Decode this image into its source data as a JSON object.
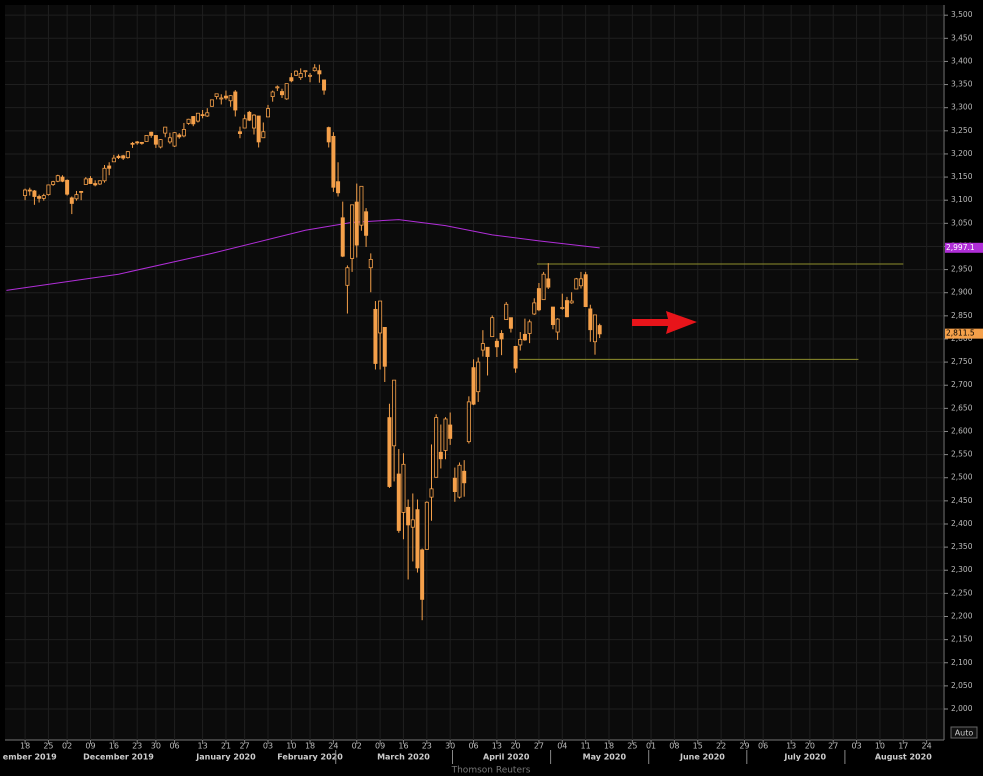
{
  "chart_data": {
    "type": "candlestick",
    "color": "#f5a04a",
    "ma_color": "#b02ed8",
    "level_color": "#8f8f2c",
    "xlim": [
      -4.3,
      196.5
    ],
    "ylim": [
      1933,
      3522
    ],
    "yticks": [
      {
        "value": 2000,
        "label": "2,000"
      },
      {
        "value": 2050,
        "label": "2,050"
      },
      {
        "value": 2100,
        "label": "2,100"
      },
      {
        "value": 2150,
        "label": "2,150"
      },
      {
        "value": 2200,
        "label": "2,200"
      },
      {
        "value": 2250,
        "label": "2,250"
      },
      {
        "value": 2300,
        "label": "2,300"
      },
      {
        "value": 2350,
        "label": "2,350"
      },
      {
        "value": 2400,
        "label": "2,400"
      },
      {
        "value": 2450,
        "label": "2,450"
      },
      {
        "value": 2500,
        "label": "2,500"
      },
      {
        "value": 2550,
        "label": "2,550"
      },
      {
        "value": 2600,
        "label": "2,600"
      },
      {
        "value": 2650,
        "label": "2,650"
      },
      {
        "value": 2700,
        "label": "2,700"
      },
      {
        "value": 2750,
        "label": "2,750"
      },
      {
        "value": 2800,
        "label": "2,800"
      },
      {
        "value": 2850,
        "label": "2,850"
      },
      {
        "value": 2900,
        "label": "2,900"
      },
      {
        "value": 2950,
        "label": "2,950"
      },
      {
        "value": 3000,
        "label": "3,000"
      },
      {
        "value": 3050,
        "label": "3,050"
      },
      {
        "value": 3100,
        "label": "3,100"
      },
      {
        "value": 3150,
        "label": "3,150"
      },
      {
        "value": 3200,
        "label": "3,200"
      },
      {
        "value": 3250,
        "label": "3,250"
      },
      {
        "value": 3300,
        "label": "3,300"
      },
      {
        "value": 3350,
        "label": "3,350"
      },
      {
        "value": 3400,
        "label": "3,400"
      },
      {
        "value": 3450,
        "label": "3,450"
      },
      {
        "value": 3500,
        "label": "3,500"
      }
    ],
    "xticks": [
      {
        "value": 0,
        "label": "18"
      },
      {
        "value": 5,
        "label": "25"
      },
      {
        "value": 9,
        "label": "02"
      },
      {
        "value": 14,
        "label": "09"
      },
      {
        "value": 19,
        "label": "16"
      },
      {
        "value": 24,
        "label": "23"
      },
      {
        "value": 28,
        "label": "30"
      },
      {
        "value": 32,
        "label": "06"
      },
      {
        "value": 38,
        "label": "13"
      },
      {
        "value": 43,
        "label": "21"
      },
      {
        "value": 47,
        "label": "27"
      },
      {
        "value": 52,
        "label": "03"
      },
      {
        "value": 57,
        "label": "10"
      },
      {
        "value": 61,
        "label": "18"
      },
      {
        "value": 66,
        "label": "24"
      },
      {
        "value": 71,
        "label": "02"
      },
      {
        "value": 76,
        "label": "09"
      },
      {
        "value": 81,
        "label": "16"
      },
      {
        "value": 86,
        "label": "23"
      },
      {
        "value": 91,
        "label": "30"
      },
      {
        "value": 96,
        "label": "06"
      },
      {
        "value": 101,
        "label": "13"
      },
      {
        "value": 105,
        "label": "20"
      },
      {
        "value": 110,
        "label": "27"
      },
      {
        "value": 115,
        "label": "04"
      },
      {
        "value": 120,
        "label": "11"
      },
      {
        "value": 125,
        "label": "18"
      },
      {
        "value": 130,
        "label": "25"
      },
      {
        "value": 134,
        "label": "01"
      },
      {
        "value": 139,
        "label": "08"
      },
      {
        "value": 144,
        "label": "15"
      },
      {
        "value": 149,
        "label": "22"
      },
      {
        "value": 154,
        "label": "29"
      },
      {
        "value": 158,
        "label": "06"
      },
      {
        "value": 164,
        "label": "13"
      },
      {
        "value": 168,
        "label": "20"
      },
      {
        "value": 173,
        "label": "27"
      },
      {
        "value": 178,
        "label": "03"
      },
      {
        "value": 183,
        "label": "10"
      },
      {
        "value": 188,
        "label": "17"
      },
      {
        "value": 193,
        "label": "24"
      }
    ],
    "months": [
      {
        "value": 1,
        "label": "ember 2019"
      },
      {
        "value": 20,
        "label": "December 2019"
      },
      {
        "value": 43,
        "label": "January 2020"
      },
      {
        "value": 61,
        "label": "February 2020"
      },
      {
        "value": 81,
        "label": "March 2020"
      },
      {
        "value": 103,
        "label": "April 2020"
      },
      {
        "value": 124,
        "label": "May 2020"
      },
      {
        "value": 145,
        "label": "June 2020"
      },
      {
        "value": 167,
        "label": "July 2020"
      },
      {
        "value": 188,
        "label": "August 2020"
      }
    ],
    "candles": [
      [
        3110,
        3125,
        3100,
        3122
      ],
      [
        3122,
        3127,
        3110,
        3120
      ],
      [
        3120,
        3122,
        3090,
        3108
      ],
      [
        3108,
        3112,
        3095,
        3104
      ],
      [
        3104,
        3114,
        3099,
        3110
      ],
      [
        3112,
        3134,
        3110,
        3133
      ],
      [
        3134,
        3142,
        3131,
        3140
      ],
      [
        3141,
        3155,
        3139,
        3153
      ],
      [
        3150,
        3154,
        3139,
        3141
      ],
      [
        3143,
        3145,
        3110,
        3113
      ],
      [
        3105,
        3108,
        3070,
        3093
      ],
      [
        3103,
        3120,
        3099,
        3112
      ],
      [
        3119,
        3120,
        3100,
        3117
      ],
      [
        3134,
        3150,
        3134,
        3146
      ],
      [
        3147,
        3152,
        3135,
        3136
      ],
      [
        3136,
        3143,
        3130,
        3133
      ],
      [
        3135,
        3143,
        3133,
        3142
      ],
      [
        3142,
        3176,
        3138,
        3169
      ],
      [
        3174,
        3182,
        3154,
        3169
      ],
      [
        3183,
        3198,
        3183,
        3191
      ],
      [
        3195,
        3199,
        3189,
        3192
      ],
      [
        3196,
        3198,
        3187,
        3191
      ],
      [
        3192,
        3206,
        3190,
        3205
      ],
      [
        3223,
        3226,
        3213,
        3221
      ],
      [
        3226,
        3228,
        3220,
        3224
      ],
      [
        3225,
        3226,
        3220,
        3223
      ],
      [
        3227,
        3240,
        3227,
        3240
      ],
      [
        3247,
        3248,
        3235,
        3240
      ],
      [
        3240,
        3241,
        3213,
        3221
      ],
      [
        3215,
        3232,
        3212,
        3231
      ],
      [
        3245,
        3258,
        3236,
        3258
      ],
      [
        3226,
        3246,
        3222,
        3235
      ],
      [
        3217,
        3247,
        3215,
        3246
      ],
      [
        3241,
        3245,
        3233,
        3237
      ],
      [
        3239,
        3267,
        3236,
        3253
      ],
      [
        3266,
        3276,
        3263,
        3275
      ],
      [
        3281,
        3282,
        3260,
        3265
      ],
      [
        3271,
        3288,
        3268,
        3288
      ],
      [
        3285,
        3295,
        3277,
        3283
      ],
      [
        3282,
        3299,
        3280,
        3289
      ],
      [
        3303,
        3317,
        3302,
        3317
      ],
      [
        3324,
        3330,
        3318,
        3330
      ],
      [
        3321,
        3329,
        3307,
        3321
      ],
      [
        3325,
        3337,
        3317,
        3321
      ],
      [
        3315,
        3327,
        3302,
        3326
      ],
      [
        3334,
        3338,
        3281,
        3295
      ],
      [
        3248,
        3259,
        3234,
        3244
      ],
      [
        3256,
        3285,
        3256,
        3276
      ],
      [
        3290,
        3293,
        3271,
        3273
      ],
      [
        3256,
        3286,
        3242,
        3284
      ],
      [
        3282,
        3282,
        3214,
        3226
      ],
      [
        3235,
        3268,
        3235,
        3248
      ],
      [
        3280,
        3306,
        3280,
        3298
      ],
      [
        3324,
        3337,
        3313,
        3334
      ],
      [
        3344,
        3348,
        3336,
        3345
      ],
      [
        3335,
        3341,
        3321,
        3328
      ],
      [
        3319,
        3352,
        3317,
        3352
      ],
      [
        3365,
        3375,
        3355,
        3358
      ],
      [
        3370,
        3381,
        3369,
        3379
      ],
      [
        3365,
        3385,
        3360,
        3374
      ],
      [
        3378,
        3380,
        3366,
        3380
      ],
      [
        3370,
        3375,
        3355,
        3370
      ],
      [
        3380,
        3394,
        3378,
        3386
      ],
      [
        3380,
        3393,
        3354,
        3373
      ],
      [
        3360,
        3360,
        3328,
        3338
      ],
      [
        3257,
        3259,
        3214,
        3226
      ],
      [
        3238,
        3247,
        3118,
        3128
      ],
      [
        3140,
        3182,
        3108,
        3116
      ],
      [
        3062,
        3097,
        2977,
        2979
      ],
      [
        2916,
        2959,
        2855,
        2954
      ],
      [
        2974,
        3090,
        2945,
        3090
      ],
      [
        3096,
        3136,
        2976,
        3003
      ],
      [
        3046,
        3130,
        3034,
        3130
      ],
      [
        3075,
        3083,
        2999,
        3024
      ],
      [
        2954,
        2985,
        2901,
        2972
      ],
      [
        2864,
        2882,
        2734,
        2747
      ],
      [
        2813,
        2882,
        2734,
        2882
      ],
      [
        2825,
        2825,
        2707,
        2741
      ],
      [
        2630,
        2660,
        2478,
        2481
      ],
      [
        2569,
        2711,
        2492,
        2711
      ],
      [
        2508,
        2562,
        2381,
        2386
      ],
      [
        2425,
        2553,
        2367,
        2529
      ],
      [
        2436,
        2453,
        2280,
        2398
      ],
      [
        2393,
        2466,
        2319,
        2409
      ],
      [
        2431,
        2453,
        2295,
        2305
      ],
      [
        2344,
        2347,
        2192,
        2237
      ],
      [
        2345,
        2449,
        2345,
        2447
      ],
      [
        2458,
        2572,
        2407,
        2476
      ],
      [
        2501,
        2637,
        2500,
        2630
      ],
      [
        2555,
        2615,
        2520,
        2541
      ],
      [
        2559,
        2631,
        2540,
        2627
      ],
      [
        2614,
        2641,
        2571,
        2585
      ],
      [
        2499,
        2522,
        2448,
        2470
      ],
      [
        2458,
        2533,
        2455,
        2527
      ],
      [
        2514,
        2538,
        2459,
        2489
      ],
      [
        2578,
        2676,
        2574,
        2664
      ],
      [
        2738,
        2756,
        2657,
        2659
      ],
      [
        2686,
        2760,
        2664,
        2750
      ],
      [
        2776,
        2819,
        2762,
        2790
      ],
      [
        2782,
        2782,
        2721,
        2762
      ],
      [
        2805,
        2851,
        2805,
        2846
      ],
      [
        2795,
        2801,
        2761,
        2783
      ],
      [
        2812,
        2819,
        2765,
        2800
      ],
      [
        2842,
        2880,
        2842,
        2875
      ],
      [
        2846,
        2846,
        2814,
        2823
      ],
      [
        2784,
        2785,
        2727,
        2737
      ],
      [
        2787,
        2815,
        2775,
        2799
      ],
      [
        2810,
        2844,
        2796,
        2798
      ],
      [
        2812,
        2842,
        2791,
        2837
      ],
      [
        2854,
        2888,
        2852,
        2878
      ],
      [
        2909,
        2921,
        2860,
        2863
      ],
      [
        2885,
        2945,
        2885,
        2940
      ],
      [
        2930,
        2964,
        2908,
        2912
      ],
      [
        2869,
        2869,
        2821,
        2831
      ],
      [
        2815,
        2845,
        2798,
        2843
      ],
      [
        2868,
        2898,
        2863,
        2868
      ],
      [
        2883,
        2891,
        2847,
        2848
      ],
      [
        2878,
        2901,
        2876,
        2882
      ],
      [
        2908,
        2932,
        2908,
        2930
      ],
      [
        2915,
        2945,
        2909,
        2930
      ],
      [
        2939,
        2945,
        2869,
        2870
      ],
      [
        2865,
        2874,
        2794,
        2820
      ],
      [
        2794,
        2852,
        2766,
        2852
      ],
      [
        2829,
        2833,
        2802,
        2811
      ]
    ],
    "ma": {
      "x": [
        -4,
        20,
        40,
        60,
        70,
        80,
        90,
        100,
        110,
        123
      ],
      "values": [
        2905,
        2940,
        2985,
        3035,
        3052,
        3058,
        3045,
        3025,
        3012,
        2997
      ]
    },
    "levels": [
      {
        "value": 2962,
        "x": [
          109.6,
          188
        ]
      },
      {
        "value": 2756,
        "x": [
          105.8,
          178.4
        ]
      }
    ],
    "last_price": {
      "value": 2811.5,
      "label": "2,811.5"
    },
    "ma_last": {
      "value": 2997.1,
      "label": "2,997.1"
    },
    "auto_button": "Auto",
    "watermark": "Thomson Reuters"
  }
}
